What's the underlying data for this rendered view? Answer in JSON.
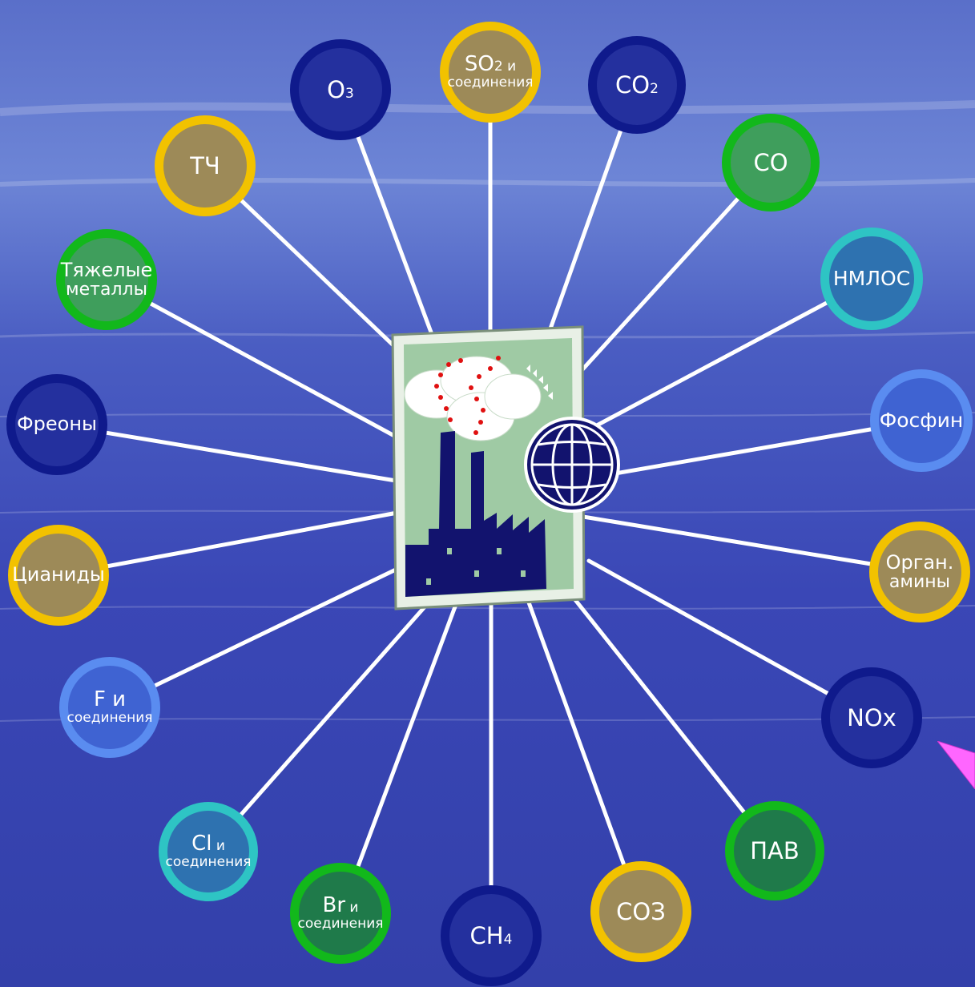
{
  "colors": {
    "navy": "#0f1a8c",
    "gold": "#f2c200",
    "green": "#12b81b",
    "teal": "#2ec4c4",
    "lightblue": "#5a8cf0",
    "fill_navy": "#24309e",
    "fill_gold": "#9d8a58",
    "fill_green_dark": "#1f7a4a",
    "fill_green": "#3f9e5c",
    "fill_teal": "#2e72b0",
    "fill_lightblue": "#3f63d2",
    "line": "#ffffff",
    "background": "#3a47b8",
    "pointer": "#ff66ff"
  },
  "center_icon": {
    "name": "factory-globe-icon"
  },
  "nodes": [
    {
      "id": "so2",
      "line1": "SO",
      "sub1": "2",
      "line1b": " и",
      "line2": "соединения",
      "ring": "gold"
    },
    {
      "id": "co2",
      "line1": "CO",
      "sub1": "2",
      "ring": "navy"
    },
    {
      "id": "co",
      "line1": "CO",
      "ring": "green"
    },
    {
      "id": "nmlos",
      "line1": "НМЛОС",
      "ring": "teal"
    },
    {
      "id": "fosfin",
      "line1": "Фосфин",
      "ring": "lightblue"
    },
    {
      "id": "organ",
      "line1": "Орган.",
      "line2": "амины",
      "ring": "gold"
    },
    {
      "id": "nox",
      "line1": "NOx",
      "ring": "navy"
    },
    {
      "id": "pav",
      "line1": "ПАВ",
      "ring": "green"
    },
    {
      "id": "soz",
      "line1": "СОЗ",
      "ring": "gold"
    },
    {
      "id": "ch4",
      "line1": "CH",
      "sub1": "4",
      "ring": "navy"
    },
    {
      "id": "br",
      "line1": "Br",
      "line1b": " и",
      "line2": "соединения",
      "ring": "green"
    },
    {
      "id": "cl",
      "line1": "Cl",
      "line1b": " и",
      "line2": "соединения",
      "ring": "teal"
    },
    {
      "id": "f",
      "line1": "F и",
      "line2": "соединения",
      "ring": "lightblue"
    },
    {
      "id": "cyan",
      "line1": "Цианиды",
      "ring": "gold"
    },
    {
      "id": "freon",
      "line1": "Фреоны",
      "ring": "navy"
    },
    {
      "id": "metals",
      "line1": "Тяжелые",
      "line2": "металлы",
      "ring": "green"
    },
    {
      "id": "tch",
      "line1": "ТЧ",
      "ring": "gold"
    },
    {
      "id": "o3",
      "line1": "О",
      "sub1": "3",
      "ring": "navy"
    }
  ]
}
